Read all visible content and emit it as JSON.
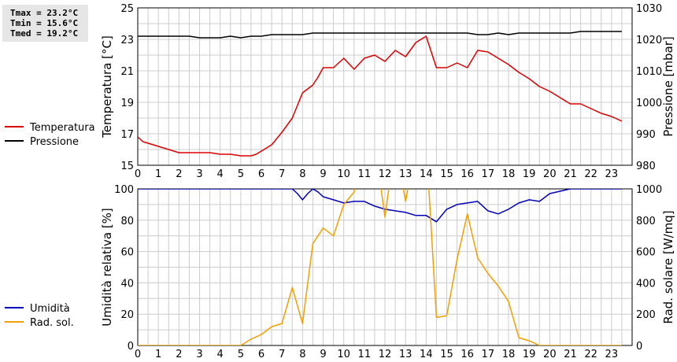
{
  "stats": {
    "tmax": "Tmax = 23.2°C",
    "tmin": "Tmin = 15.6°C",
    "tmed": "Tmed = 19.2°C"
  },
  "chart_data": [
    {
      "type": "line",
      "x_ticks": [
        "0",
        "1",
        "2",
        "3",
        "4",
        "5",
        "6",
        "7",
        "8",
        "9",
        "10",
        "11",
        "12",
        "13",
        "14",
        "15",
        "16",
        "17",
        "18",
        "19",
        "20",
        "21",
        "22",
        "23"
      ],
      "xlim": [
        0,
        24
      ],
      "grid": true,
      "left_axis": {
        "label": "Temperatura [°C]",
        "ylim": [
          15,
          25
        ],
        "ticks": [
          "15",
          "17",
          "19",
          "21",
          "23",
          "25"
        ]
      },
      "right_axis": {
        "label": "Pressione [mbar]",
        "ylim": [
          980,
          1030
        ],
        "ticks": [
          "980",
          "990",
          "1000",
          "1010",
          "1020",
          "1030"
        ]
      },
      "series": [
        {
          "name": "Temperatura",
          "color": "#dd0000",
          "axis": "left",
          "x": [
            0,
            0.25,
            0.5,
            1,
            1.5,
            2,
            2.5,
            3,
            3.5,
            4,
            4.5,
            5,
            5.25,
            5.5,
            5.75,
            6,
            6.5,
            7,
            7.5,
            8,
            8.5,
            8.75,
            9,
            9.5,
            10,
            10.5,
            11,
            11.5,
            12,
            12.5,
            13,
            13.5,
            14,
            14.5,
            15,
            15.5,
            16,
            16.5,
            17,
            17.5,
            18,
            18.5,
            19,
            19.5,
            20,
            20.5,
            21,
            21.5,
            22,
            22.5,
            23,
            23.5
          ],
          "y": [
            16.8,
            16.5,
            16.4,
            16.2,
            16.0,
            15.8,
            15.8,
            15.8,
            15.8,
            15.7,
            15.7,
            15.6,
            15.6,
            15.6,
            15.7,
            15.9,
            16.3,
            17.1,
            18.0,
            19.6,
            20.1,
            20.6,
            21.2,
            21.2,
            21.8,
            21.1,
            21.8,
            22.0,
            21.6,
            22.3,
            21.9,
            22.8,
            23.2,
            21.2,
            21.2,
            21.5,
            21.2,
            22.3,
            22.2,
            21.8,
            21.4,
            20.9,
            20.5,
            20.0,
            19.7,
            19.3,
            18.9,
            18.9,
            18.6,
            18.3,
            18.1,
            17.8
          ]
        },
        {
          "name": "Pressione",
          "color": "#000000",
          "axis": "right",
          "x": [
            0,
            0.5,
            1,
            1.5,
            2,
            2.5,
            3,
            3.5,
            4,
            4.5,
            5,
            5.5,
            6,
            6.5,
            7,
            7.5,
            8,
            8.5,
            9,
            9.5,
            10,
            10.5,
            11,
            11.5,
            12,
            12.5,
            13,
            13.5,
            14,
            14.5,
            15,
            15.5,
            16,
            16.5,
            17,
            17.5,
            18,
            18.5,
            19,
            19.5,
            20,
            20.5,
            21,
            21.5,
            22,
            22.5,
            23,
            23.5
          ],
          "y": [
            1021,
            1021,
            1021,
            1021,
            1021,
            1021,
            1020.5,
            1020.5,
            1020.5,
            1021,
            1020.5,
            1021,
            1021,
            1021.5,
            1021.5,
            1021.5,
            1021.5,
            1022,
            1022,
            1022,
            1022,
            1022,
            1022,
            1022,
            1022,
            1022,
            1022,
            1022,
            1022,
            1022,
            1022,
            1022,
            1022,
            1021.5,
            1021.5,
            1022,
            1021.5,
            1022,
            1022,
            1022,
            1022,
            1022,
            1022,
            1022.5,
            1022.5,
            1022.5,
            1022.5,
            1022.5
          ]
        }
      ]
    },
    {
      "type": "line",
      "x_ticks": [
        "0",
        "1",
        "2",
        "3",
        "4",
        "5",
        "6",
        "7",
        "8",
        "9",
        "10",
        "11",
        "12",
        "13",
        "14",
        "15",
        "16",
        "17",
        "18",
        "19",
        "20",
        "21",
        "22",
        "23"
      ],
      "xlim": [
        0,
        24
      ],
      "grid": true,
      "left_axis": {
        "label": "Umidità relativa [%]",
        "ylim": [
          0,
          100
        ],
        "ticks": [
          "0",
          "20",
          "40",
          "60",
          "80",
          "100"
        ]
      },
      "right_axis": {
        "label": "Rad. solare [W/mq]",
        "ylim": [
          0,
          1000
        ],
        "ticks": [
          "0",
          "200",
          "400",
          "600",
          "800",
          "1000"
        ]
      },
      "series": [
        {
          "name": "Umidità",
          "color": "#0000bb",
          "axis": "left",
          "x": [
            0,
            1,
            2,
            3,
            4,
            5,
            6,
            7,
            7.5,
            7.75,
            8,
            8.25,
            8.5,
            8.75,
            9,
            9.5,
            10,
            10.5,
            11,
            11.5,
            12,
            12.5,
            13,
            13.5,
            14,
            14.5,
            15,
            15.5,
            16,
            16.5,
            17,
            17.5,
            18,
            18.5,
            19,
            19.5,
            20,
            21,
            22,
            23,
            23.5
          ],
          "y": [
            100,
            100,
            100,
            100,
            100,
            100,
            100,
            100,
            100,
            97,
            93,
            97,
            100,
            98,
            95,
            93,
            91,
            92,
            92,
            89,
            87,
            86,
            85,
            83,
            83,
            79,
            87,
            90,
            91,
            92,
            86,
            84,
            87,
            91,
            93,
            92,
            97,
            100,
            100,
            100,
            100
          ]
        },
        {
          "name": "Rad. sol.",
          "color": "#f0a000",
          "axis": "right",
          "x": [
            0,
            0.5,
            1,
            1.5,
            2,
            2.5,
            3,
            3.5,
            4,
            4.5,
            5,
            5.5,
            6,
            6.5,
            7,
            7.5,
            8,
            8.5,
            9,
            9.5,
            10,
            10.5,
            11,
            11.5,
            12,
            12.5,
            13,
            13.5,
            14,
            14.5,
            15,
            15.5,
            16,
            16.5,
            17,
            17.5,
            18,
            18.5,
            19,
            19.5,
            20,
            21,
            22,
            23,
            23.5
          ],
          "y": [
            0,
            0,
            0,
            0,
            0,
            0,
            0,
            0,
            0,
            0,
            0,
            40,
            70,
            120,
            140,
            370,
            140,
            650,
            750,
            700,
            900,
            980,
            1300,
            1300,
            820,
            1300,
            920,
            1300,
            1300,
            180,
            190,
            550,
            840,
            560,
            460,
            380,
            280,
            50,
            30,
            0,
            0,
            0,
            0,
            0,
            0
          ]
        }
      ]
    }
  ],
  "legend_top": [
    {
      "name": "Temperatura",
      "color": "#dd0000"
    },
    {
      "name": "Pressione",
      "color": "#000000"
    }
  ],
  "legend_bottom": [
    {
      "name": "Umidità",
      "color": "#0000bb"
    },
    {
      "name": "Rad. sol.",
      "color": "#f0a000"
    }
  ]
}
